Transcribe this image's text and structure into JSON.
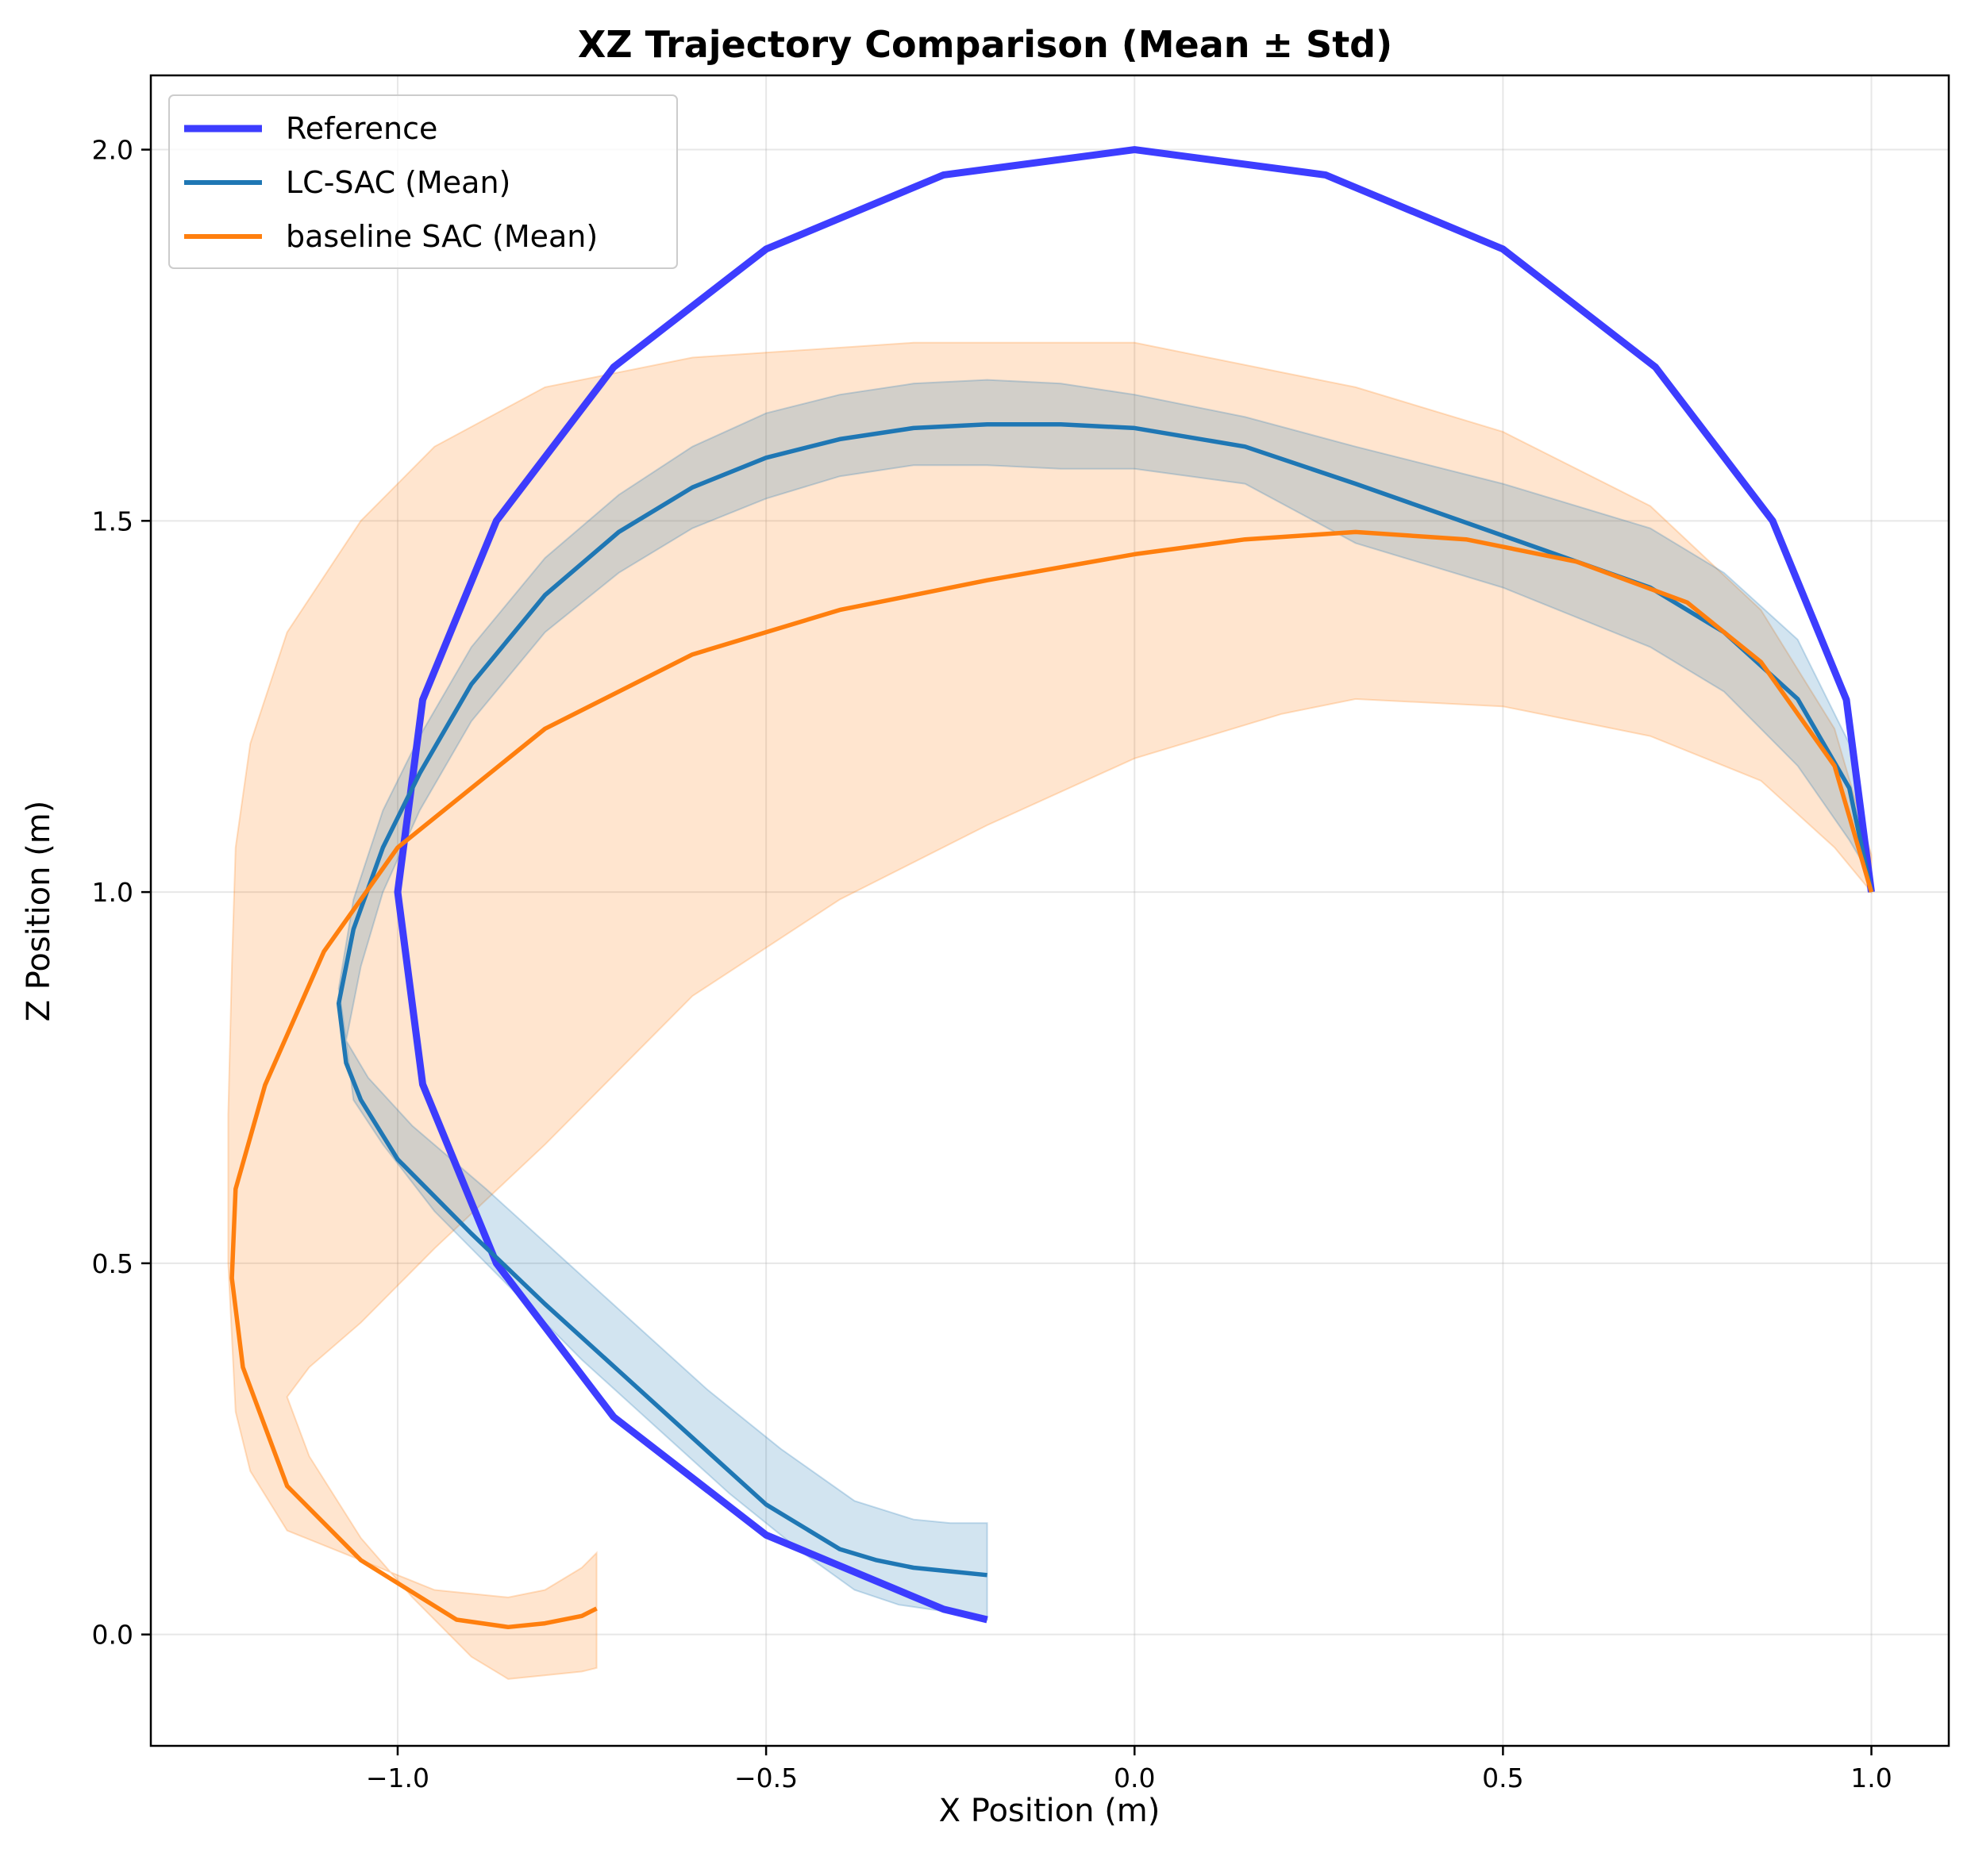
{
  "chart_data": {
    "type": "line",
    "title": "XZ Trajectory Comparison (Mean ± Std)",
    "xlabel": "X Position (m)",
    "ylabel": "Z Position (m)",
    "xlim": [
      -1.335,
      1.105
    ],
    "ylim": [
      -0.15,
      2.1
    ],
    "xticks": [
      -1.0,
      -0.5,
      0.0,
      0.5,
      1.0
    ],
    "xtick_labels": [
      "−1.0",
      "−0.5",
      "0.0",
      "0.5",
      "1.0"
    ],
    "yticks": [
      0.0,
      0.5,
      1.0,
      1.5,
      2.0
    ],
    "ytick_labels": [
      "0.0",
      "0.5",
      "1.0",
      "1.5",
      "2.0"
    ],
    "grid": true,
    "legend": {
      "placement": "upper-left"
    },
    "series": [
      {
        "name": "Reference",
        "color": "#3333ff",
        "x": [
          1.0,
          0.966,
          0.866,
          0.707,
          0.5,
          0.259,
          0.0,
          -0.259,
          -0.5,
          -0.707,
          -0.866,
          -0.966,
          -1.0,
          -0.966,
          -0.866,
          -0.707,
          -0.5,
          -0.259,
          -0.2
        ],
        "y": [
          1.0,
          1.259,
          1.5,
          1.707,
          1.866,
          1.966,
          2.0,
          1.966,
          1.866,
          1.707,
          1.5,
          1.259,
          1.0,
          0.741,
          0.5,
          0.293,
          0.134,
          0.034,
          0.02
        ]
      },
      {
        "name": "LC-SAC (Mean)",
        "color": "#1f77b4",
        "x": [
          1.0,
          0.97,
          0.9,
          0.8,
          0.7,
          0.5,
          0.3,
          0.15,
          0.0,
          -0.1,
          -0.2,
          -0.3,
          -0.4,
          -0.5,
          -0.6,
          -0.7,
          -0.8,
          -0.9,
          -0.97,
          -1.02,
          -1.06,
          -1.08,
          -1.07,
          -1.05,
          -1.0,
          -0.9,
          -0.8,
          -0.7,
          -0.6,
          -0.5,
          -0.4,
          -0.35,
          -0.3,
          -0.25,
          -0.2
        ],
        "y": [
          1.0,
          1.14,
          1.26,
          1.35,
          1.41,
          1.48,
          1.55,
          1.6,
          1.625,
          1.63,
          1.63,
          1.625,
          1.61,
          1.585,
          1.545,
          1.485,
          1.4,
          1.28,
          1.16,
          1.06,
          0.95,
          0.85,
          0.77,
          0.72,
          0.64,
          0.54,
          0.445,
          0.355,
          0.265,
          0.175,
          0.115,
          0.1,
          0.09,
          0.085,
          0.08
        ]
      },
      {
        "name": "baseline SAC (Mean)",
        "color": "#ff7f0e",
        "x": [
          1.0,
          0.95,
          0.85,
          0.75,
          0.6,
          0.45,
          0.3,
          0.15,
          0.0,
          -0.2,
          -0.4,
          -0.6,
          -0.8,
          -1.0,
          -1.1,
          -1.18,
          -1.22,
          -1.225,
          -1.21,
          -1.15,
          -1.05,
          -0.92,
          -0.85,
          -0.8,
          -0.75,
          -0.73
        ],
        "y": [
          1.0,
          1.17,
          1.31,
          1.39,
          1.445,
          1.475,
          1.485,
          1.475,
          1.455,
          1.42,
          1.38,
          1.32,
          1.22,
          1.06,
          0.92,
          0.74,
          0.6,
          0.48,
          0.36,
          0.2,
          0.1,
          0.02,
          0.01,
          0.015,
          0.025,
          0.035
        ]
      }
    ],
    "bands": [
      {
        "series": "LC-SAC (Mean)",
        "color": "#1f77b4",
        "opacity": 0.2,
        "upper_x": [
          1.0,
          0.97,
          0.9,
          0.8,
          0.7,
          0.5,
          0.3,
          0.15,
          0.0,
          -0.1,
          -0.2,
          -0.3,
          -0.4,
          -0.5,
          -0.6,
          -0.7,
          -0.8,
          -0.9,
          -0.97,
          -1.02,
          -1.06,
          -1.08,
          -1.07,
          -1.04,
          -0.98,
          -0.88,
          -0.78,
          -0.68,
          -0.58,
          -0.48,
          -0.38,
          -0.3,
          -0.25,
          -0.2
        ],
        "upper_y": [
          1.0,
          1.2,
          1.34,
          1.43,
          1.49,
          1.55,
          1.6,
          1.64,
          1.67,
          1.685,
          1.69,
          1.685,
          1.67,
          1.645,
          1.6,
          1.535,
          1.45,
          1.33,
          1.21,
          1.11,
          0.99,
          0.87,
          0.8,
          0.75,
          0.685,
          0.6,
          0.51,
          0.42,
          0.33,
          0.25,
          0.18,
          0.155,
          0.15,
          0.15
        ],
        "lower_x": [
          1.0,
          0.97,
          0.9,
          0.8,
          0.7,
          0.5,
          0.3,
          0.15,
          0.0,
          -0.1,
          -0.2,
          -0.3,
          -0.4,
          -0.5,
          -0.6,
          -0.7,
          -0.8,
          -0.9,
          -0.97,
          -1.02,
          -1.05,
          -1.07,
          -1.06,
          -1.02,
          -0.95,
          -0.85,
          -0.75,
          -0.65,
          -0.55,
          -0.45,
          -0.38,
          -0.32,
          -0.25,
          -0.2
        ],
        "lower_y": [
          1.02,
          1.07,
          1.17,
          1.27,
          1.33,
          1.41,
          1.47,
          1.55,
          1.57,
          1.57,
          1.575,
          1.575,
          1.56,
          1.53,
          1.49,
          1.43,
          1.35,
          1.23,
          1.11,
          1.0,
          0.9,
          0.8,
          0.72,
          0.66,
          0.57,
          0.47,
          0.37,
          0.28,
          0.19,
          0.11,
          0.06,
          0.04,
          0.03,
          0.02
        ]
      },
      {
        "series": "baseline SAC (Mean)",
        "color": "#ff7f0e",
        "opacity": 0.2,
        "upper_x": [
          1.0,
          0.95,
          0.85,
          0.7,
          0.5,
          0.3,
          0.0,
          -0.3,
          -0.6,
          -0.8,
          -0.95,
          -1.05,
          -1.15,
          -1.2,
          -1.22,
          -1.225,
          -1.23,
          -1.23,
          -1.22,
          -1.2,
          -1.15,
          -1.05,
          -0.95,
          -0.85,
          -0.8,
          -0.75,
          -0.73
        ],
        "upper_y": [
          1.05,
          1.22,
          1.38,
          1.52,
          1.62,
          1.68,
          1.74,
          1.74,
          1.72,
          1.68,
          1.6,
          1.5,
          1.35,
          1.2,
          1.06,
          0.9,
          0.7,
          0.5,
          0.3,
          0.22,
          0.14,
          0.1,
          0.06,
          0.05,
          0.06,
          0.09,
          0.11
        ],
        "lower_x": [
          1.0,
          0.95,
          0.85,
          0.7,
          0.5,
          0.3,
          0.2,
          0.0,
          -0.2,
          -0.4,
          -0.6,
          -0.8,
          -0.95,
          -1.05,
          -1.12,
          -1.15,
          -1.12,
          -1.05,
          -0.98,
          -0.9,
          -0.85,
          -0.8,
          -0.75,
          -0.73
        ],
        "lower_y": [
          1.0,
          1.06,
          1.15,
          1.21,
          1.25,
          1.26,
          1.24,
          1.18,
          1.09,
          0.99,
          0.86,
          0.66,
          0.52,
          0.42,
          0.36,
          0.32,
          0.24,
          0.13,
          0.05,
          -0.03,
          -0.06,
          -0.055,
          -0.05,
          -0.045
        ]
      }
    ]
  }
}
